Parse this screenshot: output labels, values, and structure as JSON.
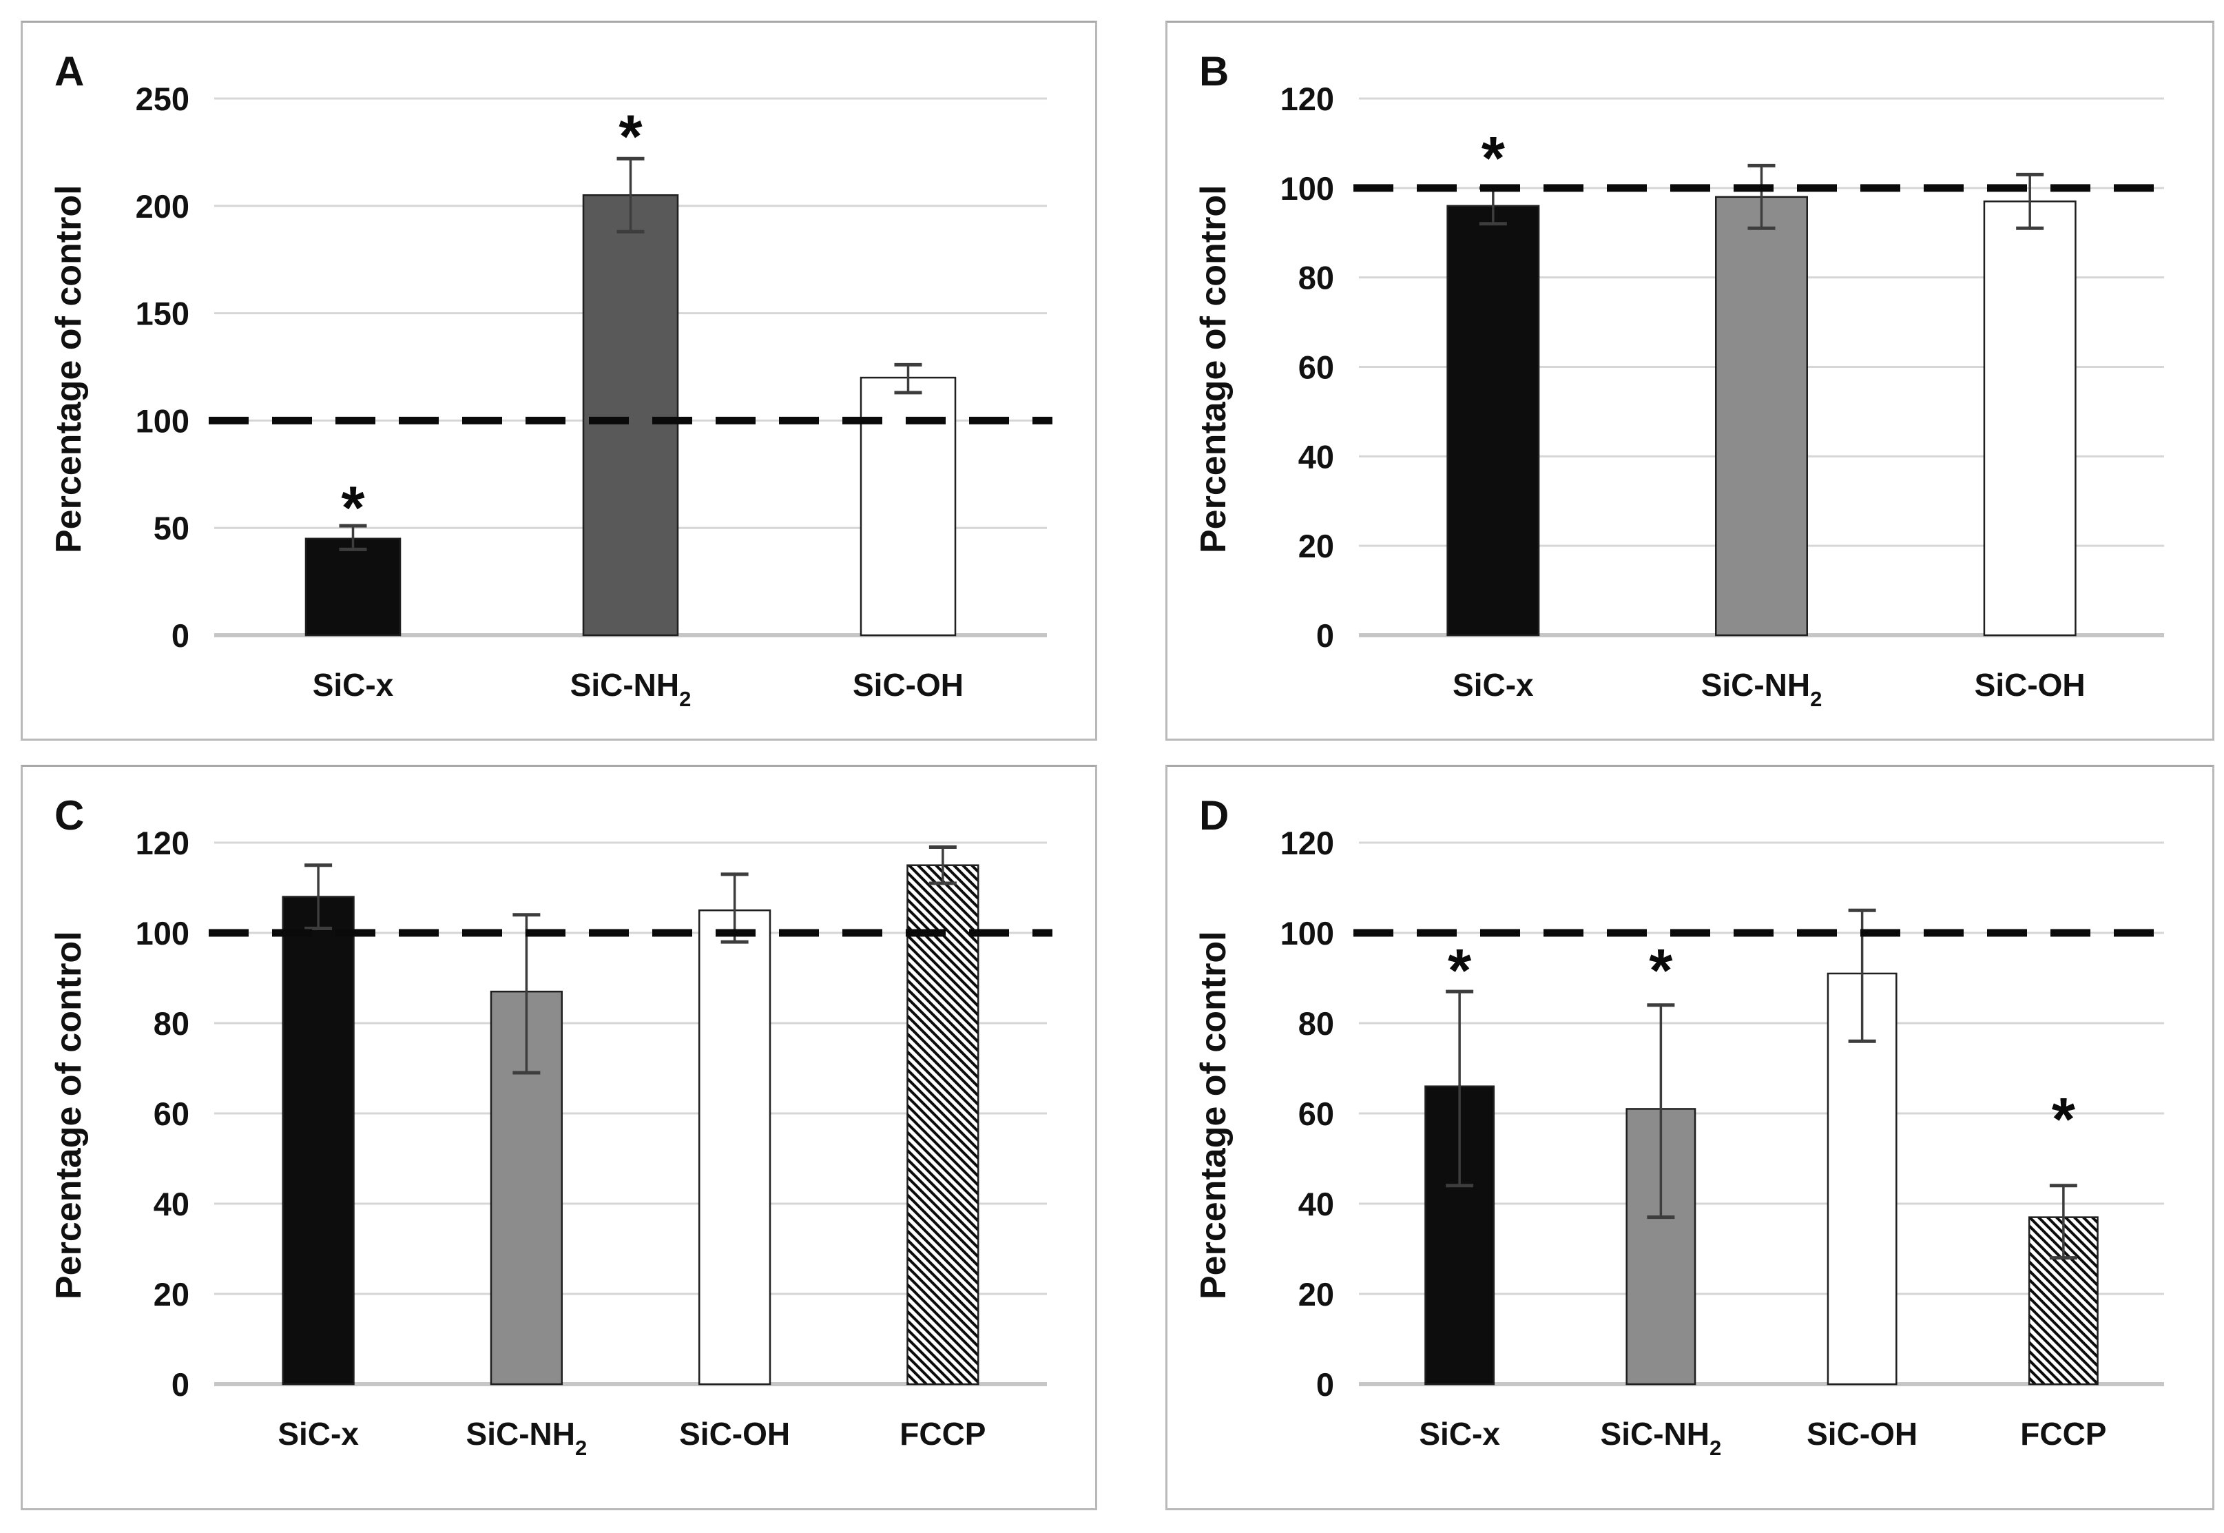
{
  "figure_title": "",
  "significance_marker": "*",
  "styles": {
    "background": "#ffffff",
    "panel_border": "#b9b9b9",
    "grid_color": "#d6d6d6",
    "baseline_color": "#c6c6c6",
    "reference_line_color": "#0a0a0a",
    "error_bar_color": "#3d3d3d",
    "text_color": "#111111",
    "bar_stroke": "#1f1f1f",
    "bar_fills": {
      "black": "#0d0d0d",
      "darkgray": "#595959",
      "gray": "#8c8c8c",
      "white": "#ffffff",
      "hatch": "hatch"
    }
  },
  "chart_data": [
    {
      "type": "bar",
      "panel_label": "A",
      "ylabel": "Percentage of control",
      "xlabel": "",
      "ylim": [
        0,
        250
      ],
      "yticks": [
        0,
        50,
        100,
        150,
        200,
        250
      ],
      "reference_line": 100,
      "grid": true,
      "legend": "none",
      "bars": [
        {
          "category": "SiC-x",
          "category_sub": "",
          "value": 45,
          "err_plus": 6,
          "err_minus": 5,
          "significant": true,
          "sig_y": 60,
          "fill": "black"
        },
        {
          "category": "SiC-NH",
          "category_sub": "2",
          "value": 205,
          "err_plus": 17,
          "err_minus": 17,
          "significant": true,
          "sig_y": 233,
          "fill": "darkgray"
        },
        {
          "category": "SiC-OH",
          "category_sub": "",
          "value": 120,
          "err_plus": 6,
          "err_minus": 7,
          "significant": false,
          "sig_y": null,
          "fill": "white"
        }
      ]
    },
    {
      "type": "bar",
      "panel_label": "B",
      "ylabel": "Percentage of control",
      "xlabel": "",
      "ylim": [
        0,
        120
      ],
      "yticks": [
        0,
        20,
        40,
        60,
        80,
        100,
        120
      ],
      "reference_line": 100,
      "grid": true,
      "legend": "none",
      "bars": [
        {
          "category": "SiC-x",
          "category_sub": "",
          "value": 96,
          "err_plus": 4,
          "err_minus": 4,
          "significant": true,
          "sig_y": 107,
          "fill": "black"
        },
        {
          "category": "SiC-NH",
          "category_sub": "2",
          "value": 98,
          "err_plus": 7,
          "err_minus": 7,
          "significant": false,
          "sig_y": null,
          "fill": "gray"
        },
        {
          "category": "SiC-OH",
          "category_sub": "",
          "value": 97,
          "err_plus": 6,
          "err_minus": 6,
          "significant": false,
          "sig_y": null,
          "fill": "white"
        }
      ]
    },
    {
      "type": "bar",
      "panel_label": "C",
      "ylabel": "Percentage of control",
      "xlabel": "",
      "ylim": [
        0,
        120
      ],
      "yticks": [
        0,
        20,
        40,
        60,
        80,
        100,
        120
      ],
      "reference_line": 100,
      "grid": true,
      "legend": "none",
      "bars": [
        {
          "category": "SiC-x",
          "category_sub": "",
          "value": 108,
          "err_plus": 7,
          "err_minus": 7,
          "significant": false,
          "sig_y": null,
          "fill": "black"
        },
        {
          "category": "SiC-NH",
          "category_sub": "2",
          "value": 87,
          "err_plus": 17,
          "err_minus": 18,
          "significant": false,
          "sig_y": null,
          "fill": "gray"
        },
        {
          "category": "SiC-OH",
          "category_sub": "",
          "value": 105,
          "err_plus": 8,
          "err_minus": 7,
          "significant": false,
          "sig_y": null,
          "fill": "white"
        },
        {
          "category": "FCCP",
          "category_sub": "",
          "value": 115,
          "err_plus": 4,
          "err_minus": 4,
          "significant": false,
          "sig_y": null,
          "fill": "hatch"
        }
      ]
    },
    {
      "type": "bar",
      "panel_label": "D",
      "ylabel": "Percentage of control",
      "xlabel": "",
      "ylim": [
        0,
        120
      ],
      "yticks": [
        0,
        20,
        40,
        60,
        80,
        100,
        120
      ],
      "reference_line": 100,
      "grid": true,
      "legend": "none",
      "bars": [
        {
          "category": "SiC-x",
          "category_sub": "",
          "value": 66,
          "err_plus": 21,
          "err_minus": 22,
          "significant": true,
          "sig_y": 92,
          "fill": "black"
        },
        {
          "category": "SiC-NH",
          "category_sub": "2",
          "value": 61,
          "err_plus": 23,
          "err_minus": 24,
          "significant": true,
          "sig_y": 92,
          "fill": "gray"
        },
        {
          "category": "SiC-OH",
          "category_sub": "",
          "value": 91,
          "err_plus": 14,
          "err_minus": 15,
          "significant": false,
          "sig_y": null,
          "fill": "white"
        },
        {
          "category": "FCCP",
          "category_sub": "",
          "value": 37,
          "err_plus": 7,
          "err_minus": 9,
          "significant": true,
          "sig_y": 59,
          "fill": "hatch"
        }
      ]
    }
  ]
}
